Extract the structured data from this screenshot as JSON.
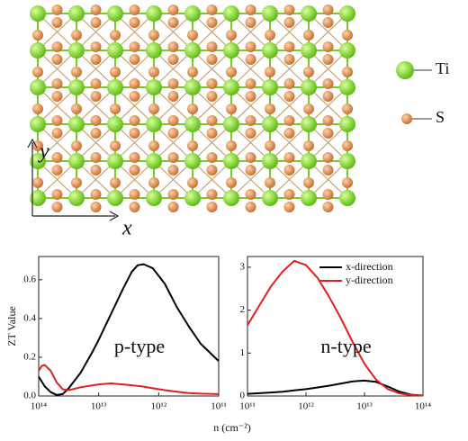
{
  "structure": {
    "legend": [
      "Ti",
      "S"
    ],
    "axis_labels": {
      "x": "x",
      "y": "y"
    }
  },
  "chart_data": [
    {
      "type": "line",
      "ylabel": "ZT Value",
      "xlabel": "n (cm⁻²)",
      "annotation": "p-type",
      "xlog": true,
      "xlim": [
        100000000000000.0,
        100000000000.0
      ],
      "xticks": [
        {
          "value": 100000000000000.0,
          "label": "10¹⁴"
        },
        {
          "value": 10000000000000.0,
          "label": "10¹³"
        },
        {
          "value": 1000000000000.0,
          "label": "10¹²"
        },
        {
          "value": 100000000000.0,
          "label": "10¹¹"
        }
      ],
      "ylim": [
        0,
        0.72
      ],
      "yticks": [
        {
          "value": 0,
          "label": "0.0"
        },
        0.2,
        0.4,
        0.6
      ],
      "legend": false,
      "x": [
        100000000000000.0,
        89100000000000.0,
        79400000000000.0,
        63100000000000.0,
        50100000000000.0,
        39800000000000.0,
        31600000000000.0,
        20000000000000.0,
        12600000000000.0,
        10000000000000.0,
        6310000000000.0,
        3980000000000.0,
        2820000000000.0,
        2240000000000.0,
        1780000000000.0,
        1260000000000.0,
        794000000000.0,
        501000000000.0,
        316000000000.0,
        200000000000.0,
        100000000000.0
      ],
      "series": [
        {
          "name": "x-direction",
          "color": "#000000",
          "values": [
            0.1,
            0.075,
            0.05,
            0.02,
            0.005,
            0.01,
            0.04,
            0.12,
            0.23,
            0.29,
            0.42,
            0.55,
            0.64,
            0.675,
            0.68,
            0.66,
            0.58,
            0.46,
            0.36,
            0.27,
            0.18
          ]
        },
        {
          "name": "y-direction",
          "color": "#e02020",
          "values": [
            0.13,
            0.155,
            0.16,
            0.13,
            0.07,
            0.035,
            0.03,
            0.045,
            0.055,
            0.06,
            0.065,
            0.06,
            0.055,
            0.052,
            0.048,
            0.04,
            0.03,
            0.022,
            0.015,
            0.012,
            0.01
          ]
        }
      ]
    },
    {
      "type": "line",
      "annotation": "n-type",
      "xlog": true,
      "xlim": [
        100000000000.0,
        100000000000000.0
      ],
      "xticks": [
        {
          "value": 100000000000.0,
          "label": "10¹¹"
        },
        {
          "value": 1000000000000.0,
          "label": "10¹²"
        },
        {
          "value": 10000000000000.0,
          "label": "10¹³"
        },
        {
          "value": 100000000000000.0,
          "label": "10¹⁴"
        }
      ],
      "ylim": [
        0,
        3.25
      ],
      "yticks": [
        0,
        1,
        2,
        3
      ],
      "legend": true,
      "x": [
        100000000000.0,
        158000000000.0,
        251000000000.0,
        398000000000.0,
        631000000000.0,
        1000000000000.0,
        1580000000000.0,
        2510000000000.0,
        3980000000000.0,
        6310000000000.0,
        10000000000000.0,
        15800000000000.0,
        25100000000000.0,
        39800000000000.0,
        63100000000000.0,
        100000000000000.0
      ],
      "series": [
        {
          "name": "x-direction",
          "color": "#000000",
          "values": [
            0.05,
            0.065,
            0.08,
            0.1,
            0.13,
            0.16,
            0.2,
            0.24,
            0.29,
            0.34,
            0.36,
            0.33,
            0.22,
            0.1,
            0.03,
            0.01
          ]
        },
        {
          "name": "y-direction",
          "color": "#e02020",
          "values": [
            1.65,
            2.1,
            2.55,
            2.9,
            3.15,
            3.05,
            2.75,
            2.3,
            1.8,
            1.25,
            0.75,
            0.38,
            0.16,
            0.06,
            0.02,
            0.01
          ]
        }
      ]
    }
  ]
}
